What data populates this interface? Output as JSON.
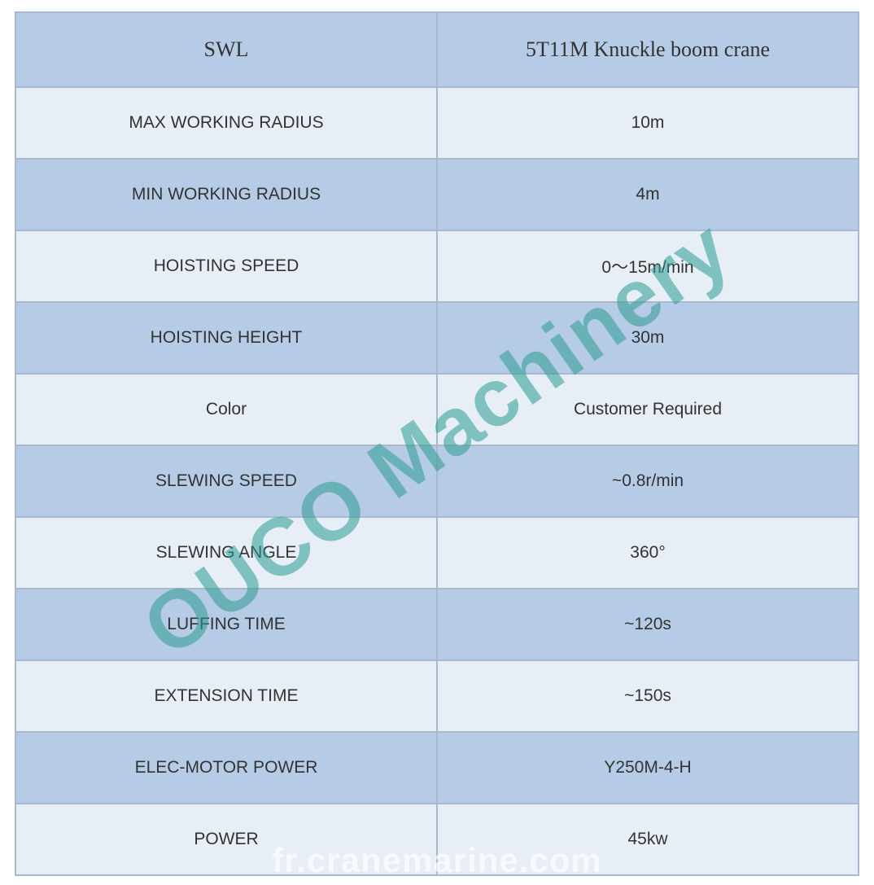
{
  "table": {
    "colors": {
      "header_bg": "#b5cbe6",
      "row_odd_bg": "#e7eef6",
      "row_even_bg": "#b5cbe6",
      "border": "#a8b8d0",
      "text": "#333333"
    },
    "header": {
      "left": "SWL",
      "right": "5T11M Knuckle boom crane",
      "font_family": "Times New Roman",
      "font_size": 26
    },
    "rows": [
      {
        "label": "MAX WORKING RADIUS",
        "value": "10m"
      },
      {
        "label": "MIN WORKING RADIUS",
        "value": "4m"
      },
      {
        "label": "HOISTING SPEED",
        "value": "0～15m/min"
      },
      {
        "label": "HOISTING HEIGHT",
        "value": "30m"
      },
      {
        "label": "Color",
        "value": "Customer Required"
      },
      {
        "label": "SLEWING SPEED",
        "value": "~0.8r/min"
      },
      {
        "label": "SLEWING ANGLE",
        "value": "360°"
      },
      {
        "label": "LUFFING TIME",
        "value": "~120s"
      },
      {
        "label": "EXTENSION TIME",
        "value": "~150s"
      },
      {
        "label": "ELEC-MOTOR POWER",
        "value": "Y250M-4-H"
      },
      {
        "label": "POWER",
        "value": "45kw"
      }
    ],
    "data_font_size": 21
  },
  "watermarks": {
    "diagonal": {
      "text": "OUCO Machinery",
      "color": "rgba(42, 157, 143, 0.55)",
      "font_size": 100,
      "rotation_deg": -35
    },
    "bottom": {
      "text": "fr.cranemarine.com",
      "color": "rgba(255, 255, 255, 0.65)",
      "font_size": 42
    }
  }
}
